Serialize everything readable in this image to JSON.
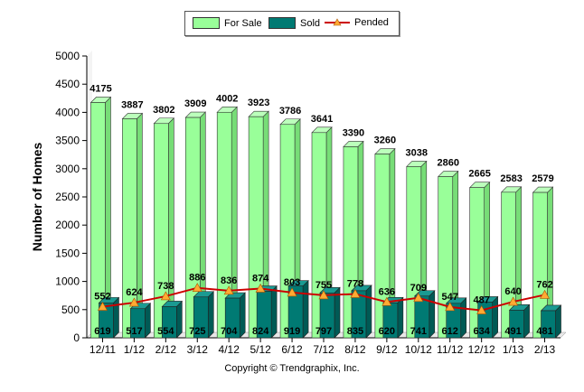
{
  "chart_data": {
    "type": "bar",
    "categories": [
      "12/11",
      "1/12",
      "2/12",
      "3/12",
      "4/12",
      "5/12",
      "6/12",
      "7/12",
      "8/12",
      "9/12",
      "10/12",
      "11/12",
      "12/12",
      "1/13",
      "2/13"
    ],
    "series": [
      {
        "name": "For Sale",
        "kind": "bar",
        "color": "#99ff99",
        "values": [
          4175,
          3887,
          3802,
          3909,
          4002,
          3923,
          3786,
          3641,
          3390,
          3260,
          3038,
          2860,
          2665,
          2583,
          2579
        ]
      },
      {
        "name": "Sold",
        "kind": "bar",
        "color": "#007a73",
        "values": [
          619,
          517,
          554,
          725,
          704,
          824,
          919,
          797,
          835,
          620,
          741,
          612,
          634,
          491,
          481
        ]
      },
      {
        "name": "Pended",
        "kind": "line",
        "color": "#cc0000",
        "marker_color": "#ffaa33",
        "values": [
          552,
          624,
          738,
          886,
          836,
          874,
          803,
          755,
          778,
          636,
          709,
          547,
          487,
          640,
          762
        ]
      }
    ],
    "ylabel": "Number of Homes",
    "xlabel": "",
    "ylim": [
      0,
      5000
    ],
    "yticks": [
      0,
      500,
      1000,
      1500,
      2000,
      2500,
      3000,
      3500,
      4000,
      4500,
      5000
    ],
    "grid": false,
    "legend_position": "top-center"
  },
  "legend": {
    "for_sale": "For Sale",
    "sold": "Sold",
    "pended": "Pended"
  },
  "footer": {
    "copyright": "Copyright © Trendgraphix, Inc."
  }
}
